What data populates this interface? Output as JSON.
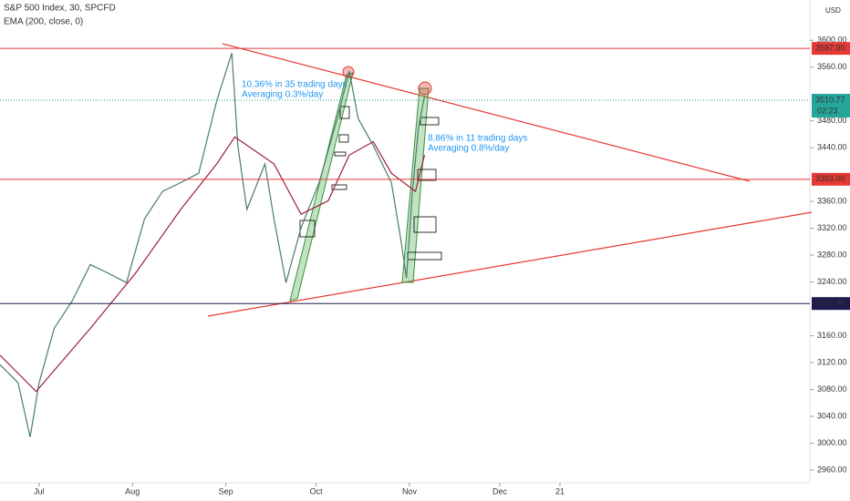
{
  "chart_data": {
    "type": "line",
    "title": "S&P 500 Index, 30, SPCFD",
    "currency": "USD",
    "xlim": [
      -13,
      256
    ],
    "ylim": [
      2941,
      3660
    ],
    "xticks": [
      {
        "value": 0,
        "label": "Jul"
      },
      {
        "value": 31,
        "label": "Aug"
      },
      {
        "value": 62,
        "label": "Sep"
      },
      {
        "value": 92,
        "label": "Oct"
      },
      {
        "value": 123,
        "label": "Nov"
      },
      {
        "value": 153,
        "label": "Dec"
      },
      {
        "value": 173,
        "label": "21"
      }
    ],
    "yticks": [
      {
        "value": 2960,
        "label": "2960.00"
      },
      {
        "value": 3000,
        "label": "3000.00"
      },
      {
        "value": 3040,
        "label": "3040.00"
      },
      {
        "value": 3080,
        "label": "3080.00"
      },
      {
        "value": 3120,
        "label": "3120.00"
      },
      {
        "value": 3160,
        "label": "3160.00"
      },
      {
        "value": 3240,
        "label": "3240.00"
      },
      {
        "value": 3280,
        "label": "3280.00"
      },
      {
        "value": 3320,
        "label": "3320.00"
      },
      {
        "value": 3360,
        "label": "3360.00"
      },
      {
        "value": 3440,
        "label": "3440.00"
      },
      {
        "value": 3480,
        "label": "3480.00"
      },
      {
        "value": 3560,
        "label": "3560.00"
      },
      {
        "value": 3600,
        "label": "3600.00"
      }
    ],
    "series": [
      {
        "color": "#4a7d6a",
        "x": [
          -13,
          -7,
          -3,
          0,
          5,
          11,
          17,
          23,
          29,
          35,
          41,
          47,
          53,
          59,
          64,
          66,
          69,
          75,
          78,
          82,
          87,
          93,
          99,
          103,
          106,
          111,
          117,
          120,
          122,
          124,
          126,
          128
        ],
        "values": [
          3117,
          3090,
          3009,
          3090,
          3171,
          3212,
          3266,
          3253,
          3239,
          3334,
          3375,
          3388,
          3402,
          3510,
          3581,
          3443,
          3348,
          3416,
          3334,
          3239,
          3321,
          3388,
          3483,
          3554,
          3483,
          3443,
          3388,
          3307,
          3246,
          3375,
          3470,
          3517
        ]
      },
      {
        "name": "EMA (200, close, 0)",
        "color": "#9c1f3c",
        "x": [
          -13,
          -1,
          17,
          32,
          47,
          59,
          65,
          78,
          87,
          96,
          103,
          111,
          117,
          125,
          128
        ],
        "values": [
          3131,
          3077,
          3171,
          3253,
          3348,
          3416,
          3456,
          3416,
          3341,
          3361,
          3429,
          3449,
          3402,
          3375,
          3429
        ]
      }
    ],
    "levels": {
      "values": [
        3587.9,
        3393,
        3207.96
      ],
      "value_labels": [
        "3587.90",
        "3393.00",
        "3207.96"
      ],
      "colors": [
        "#e53935",
        "#e53935",
        "#1e1a4d"
      ]
    },
    "last_price": {
      "value": 3510.77,
      "color": "#26a69a",
      "countdown": "02:23"
    },
    "annotations": [
      "10.36% in 35 trading days",
      "Averaging 0.3%/day",
      "8.86% in 11 trading days",
      "Averaging 0.8%/day"
    ]
  }
}
